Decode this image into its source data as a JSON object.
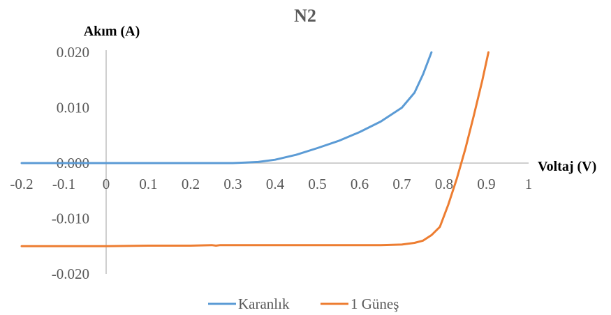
{
  "chart_data": {
    "type": "line",
    "title": "N2",
    "xlabel": "Voltaj (V)",
    "ylabel": "Akım (A)",
    "xlim": [
      -0.2,
      1
    ],
    "ylim": [
      -0.02,
      0.02
    ],
    "x_ticks": [
      "-0.2",
      "-0.1",
      "0",
      "0.1",
      "0.2",
      "0.3",
      "0.4",
      "0.5",
      "0.6",
      "0.7",
      "0.8",
      "0.9",
      "1"
    ],
    "y_ticks": [
      "0.020",
      "0.010",
      "0.000",
      "-0.010",
      "-0.020"
    ],
    "grid": false,
    "legend_position": "bottom",
    "series": [
      {
        "name": "Karanlık",
        "color": "#5B9BD5",
        "x": [
          -0.2,
          -0.1,
          0.0,
          0.1,
          0.2,
          0.3,
          0.33,
          0.36,
          0.4,
          0.45,
          0.5,
          0.55,
          0.6,
          0.65,
          0.7,
          0.73,
          0.75,
          0.77
        ],
        "y": [
          0.0,
          0.0,
          0.0,
          0.0,
          0.0,
          0.0,
          0.0001,
          0.0002,
          0.0006,
          0.0015,
          0.0027,
          0.004,
          0.0056,
          0.0075,
          0.01,
          0.0127,
          0.016,
          0.02
        ]
      },
      {
        "name": "1 Güneş",
        "color": "#ED7D31",
        "x": [
          -0.2,
          -0.1,
          0.0,
          0.1,
          0.2,
          0.25,
          0.26,
          0.27,
          0.3,
          0.4,
          0.5,
          0.6,
          0.65,
          0.7,
          0.73,
          0.75,
          0.77,
          0.79,
          0.81,
          0.83,
          0.85,
          0.87,
          0.89,
          0.905
        ],
        "y": [
          -0.015,
          -0.015,
          -0.015,
          -0.0149,
          -0.0149,
          -0.0148,
          -0.0149,
          -0.0148,
          -0.0148,
          -0.0148,
          -0.0148,
          -0.0148,
          -0.0148,
          -0.0147,
          -0.0144,
          -0.014,
          -0.013,
          -0.0115,
          -0.0075,
          -0.0028,
          0.0025,
          0.0085,
          0.0148,
          0.02
        ]
      }
    ]
  }
}
